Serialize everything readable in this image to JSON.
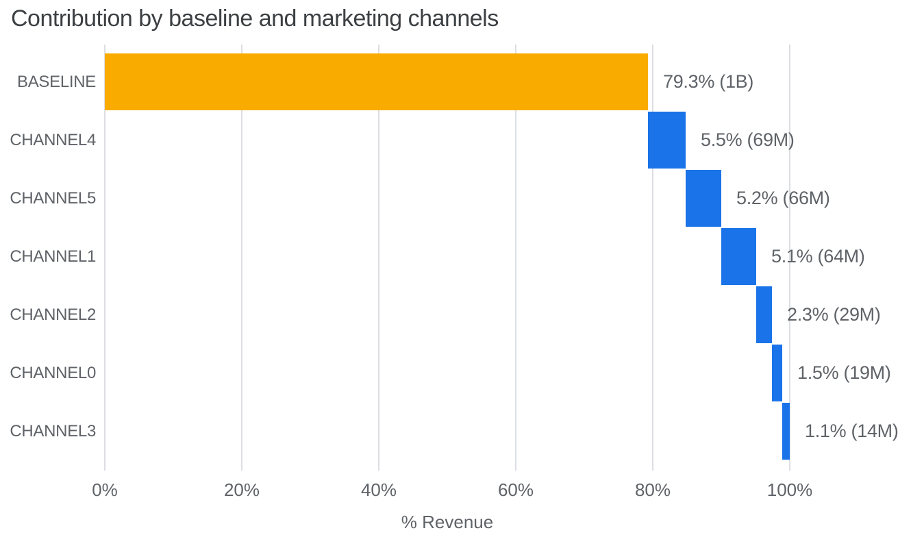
{
  "chart_data": {
    "type": "bar",
    "subtype": "horizontal-waterfall",
    "title": "Contribution by baseline and marketing channels",
    "xlabel": "% Revenue",
    "ylabel": "",
    "categories": [
      "BASELINE",
      "CHANNEL4",
      "CHANNEL5",
      "CHANNEL1",
      "CHANNEL2",
      "CHANNEL0",
      "CHANNEL3"
    ],
    "values": [
      79.3,
      5.5,
      5.2,
      5.1,
      2.3,
      1.5,
      1.1
    ],
    "bar_labels": [
      "79.3% (1B)",
      "5.5% (69M)",
      "5.2% (66M)",
      "5.1% (64M)",
      "2.3% (29M)",
      "1.5% (19M)",
      "1.1% (14M)"
    ],
    "bar_colors": [
      "#f9ab00",
      "#1a73e8",
      "#1a73e8",
      "#1a73e8",
      "#1a73e8",
      "#1a73e8",
      "#1a73e8"
    ],
    "x_ticks": [
      {
        "value": 0,
        "label": "0%"
      },
      {
        "value": 20,
        "label": "20%"
      },
      {
        "value": 40,
        "label": "40%"
      },
      {
        "value": 60,
        "label": "60%"
      },
      {
        "value": 80,
        "label": "80%"
      },
      {
        "value": 100,
        "label": "100%"
      }
    ],
    "xlim": [
      0,
      117.7
    ],
    "grid": "vertical-on",
    "legend": "none",
    "colors": {
      "baseline_bar": "#f9ab00",
      "channel_bar": "#1a73e8",
      "gridline": "#dcdee2",
      "title_text": "#3c4043",
      "label_text": "#5f6368",
      "background": "#ffffff"
    }
  }
}
